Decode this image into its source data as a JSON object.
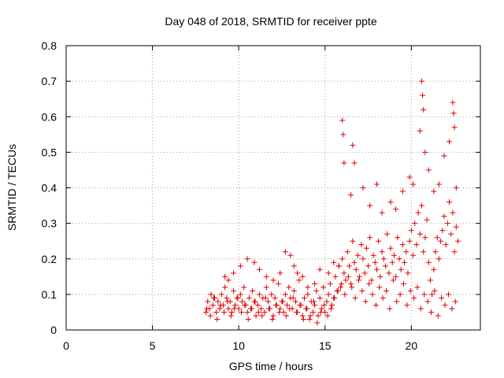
{
  "chart_data": {
    "type": "scatter",
    "title": "Day 048 of 2018, SRMTID for receiver ppte",
    "xlabel": "GPS time / hours",
    "ylabel": "SRMTID / TECUs",
    "xlim": [
      0,
      24
    ],
    "ylim": [
      0,
      0.8
    ],
    "xticks": [
      0,
      5,
      10,
      15,
      20
    ],
    "xtick_labels": [
      "0",
      "5",
      "10",
      "15",
      "20"
    ],
    "yticks": [
      0,
      0.1,
      0.2,
      0.3,
      0.4,
      0.5,
      0.6,
      0.7,
      0.8
    ],
    "ytick_labels": [
      "0",
      "0.1",
      "0.2",
      "0.3",
      "0.4",
      "0.5",
      "0.6",
      "0.7",
      "0.8"
    ],
    "grid": true,
    "marker": "+",
    "color": "#e00000",
    "series": [
      {
        "name": "SRMTID",
        "x": [
          8.1,
          8.2,
          8.3,
          8.4,
          8.5,
          8.6,
          8.7,
          8.8,
          8.9,
          9.0,
          9.1,
          9.2,
          9.3,
          9.4,
          9.5,
          9.6,
          9.7,
          9.8,
          9.9,
          10.0,
          10.1,
          10.2,
          10.3,
          10.4,
          10.5,
          10.6,
          10.7,
          10.8,
          10.9,
          11.0,
          11.1,
          11.2,
          11.3,
          11.4,
          11.5,
          11.6,
          11.7,
          11.8,
          11.9,
          12.0,
          12.1,
          12.2,
          12.3,
          12.4,
          12.5,
          12.6,
          12.7,
          12.8,
          12.9,
          13.0,
          13.1,
          13.2,
          13.3,
          13.4,
          13.5,
          13.6,
          13.7,
          13.8,
          13.9,
          14.0,
          14.1,
          14.2,
          14.3,
          14.4,
          14.5,
          14.6,
          14.7,
          14.8,
          14.9,
          15.0,
          15.1,
          15.2,
          15.3,
          15.4,
          15.5,
          15.6,
          15.7,
          15.8,
          15.9,
          16.0,
          16.1,
          16.2,
          16.3,
          16.4,
          16.5,
          16.6,
          16.7,
          16.8,
          16.9,
          17.0,
          17.1,
          17.2,
          17.3,
          17.4,
          17.5,
          17.6,
          17.7,
          17.8,
          17.9,
          18.0,
          18.1,
          18.2,
          18.3,
          18.4,
          18.5,
          18.6,
          18.7,
          18.8,
          18.9,
          19.0,
          19.1,
          19.2,
          19.3,
          19.4,
          19.5,
          19.6,
          19.7,
          19.8,
          19.9,
          20.0,
          20.1,
          20.2,
          20.3,
          20.4,
          20.5,
          20.6,
          20.7,
          20.8,
          20.9,
          21.0,
          21.1,
          21.2,
          21.3,
          21.4,
          21.5,
          21.6,
          21.7,
          21.8,
          21.9,
          22.0,
          22.1,
          22.2,
          22.3,
          22.4,
          22.5,
          22.6,
          22.7,
          8.15,
          8.35,
          8.55,
          8.75,
          8.95,
          9.15,
          9.35,
          9.55,
          9.75,
          9.95,
          10.15,
          10.35,
          10.55,
          10.75,
          10.95,
          11.15,
          11.35,
          11.55,
          11.75,
          11.95,
          12.15,
          12.35,
          12.55,
          12.75,
          12.95,
          13.15,
          13.35,
          13.55,
          13.75,
          13.95,
          14.15,
          14.35,
          14.55,
          14.75,
          14.95,
          15.15,
          15.35,
          15.55,
          15.75,
          15.95,
          16.15,
          16.35,
          16.55,
          16.75,
          16.95,
          17.15,
          17.35,
          17.55,
          17.75,
          17.95,
          18.15,
          18.35,
          18.55,
          18.75,
          18.95,
          19.15,
          19.35,
          19.55,
          19.75,
          19.95,
          20.15,
          20.35,
          20.55,
          20.75,
          20.95,
          21.15,
          21.35,
          21.55,
          21.75,
          21.95,
          22.15,
          22.35,
          22.55,
          9.2,
          9.4,
          9.7,
          10.1,
          10.5,
          10.9,
          11.2,
          11.6,
          12.0,
          12.4,
          12.7,
          13.0,
          13.2,
          13.4,
          13.7,
          14.0,
          14.4,
          14.7,
          15.2,
          15.5,
          15.8,
          16.0,
          16.05,
          16.1,
          16.5,
          16.6,
          16.7,
          17.2,
          17.6,
          18.0,
          18.3,
          18.8,
          19.1,
          19.5,
          19.9,
          20.1,
          20.5,
          20.6,
          20.65,
          20.7,
          20.8,
          21.0,
          21.3,
          21.6,
          21.9,
          22.2,
          22.4,
          22.45,
          22.5,
          22.6
        ],
        "y": [
          0.05,
          0.08,
          0.06,
          0.1,
          0.07,
          0.09,
          0.05,
          0.08,
          0.06,
          0.1,
          0.07,
          0.12,
          0.09,
          0.06,
          0.08,
          0.05,
          0.11,
          0.07,
          0.09,
          0.06,
          0.1,
          0.08,
          0.12,
          0.07,
          0.05,
          0.09,
          0.06,
          0.11,
          0.08,
          0.04,
          0.07,
          0.1,
          0.06,
          0.09,
          0.05,
          0.12,
          0.08,
          0.06,
          0.1,
          0.04,
          0.09,
          0.07,
          0.13,
          0.06,
          0.08,
          0.05,
          0.1,
          0.07,
          0.12,
          0.09,
          0.06,
          0.11,
          0.08,
          0.05,
          0.14,
          0.07,
          0.04,
          0.09,
          0.06,
          0.1,
          0.03,
          0.08,
          0.05,
          0.07,
          0.11,
          0.04,
          0.09,
          0.06,
          0.12,
          0.05,
          0.08,
          0.1,
          0.13,
          0.07,
          0.09,
          0.15,
          0.11,
          0.18,
          0.12,
          0.2,
          0.16,
          0.14,
          0.22,
          0.18,
          0.13,
          0.25,
          0.19,
          0.17,
          0.21,
          0.15,
          0.24,
          0.2,
          0.16,
          0.23,
          0.18,
          0.26,
          0.14,
          0.21,
          0.19,
          0.17,
          0.25,
          0.15,
          0.22,
          0.2,
          0.18,
          0.27,
          0.16,
          0.23,
          0.19,
          0.21,
          0.15,
          0.26,
          0.2,
          0.17,
          0.24,
          0.19,
          0.22,
          0.16,
          0.25,
          0.28,
          0.21,
          0.3,
          0.24,
          0.33,
          0.27,
          0.35,
          0.22,
          0.26,
          0.31,
          0.19,
          0.14,
          0.1,
          0.17,
          0.22,
          0.26,
          0.2,
          0.25,
          0.28,
          0.32,
          0.24,
          0.3,
          0.36,
          0.27,
          0.33,
          0.22,
          0.29,
          0.25,
          0.06,
          0.04,
          0.09,
          0.03,
          0.07,
          0.05,
          0.08,
          0.04,
          0.06,
          0.09,
          0.05,
          0.07,
          0.03,
          0.06,
          0.08,
          0.05,
          0.04,
          0.09,
          0.06,
          0.03,
          0.07,
          0.05,
          0.08,
          0.04,
          0.06,
          0.09,
          0.05,
          0.07,
          0.03,
          0.06,
          0.04,
          0.08,
          0.02,
          0.05,
          0.07,
          0.04,
          0.06,
          0.09,
          0.11,
          0.13,
          0.1,
          0.15,
          0.12,
          0.09,
          0.14,
          0.11,
          0.08,
          0.13,
          0.1,
          0.07,
          0.12,
          0.09,
          0.11,
          0.06,
          0.14,
          0.08,
          0.1,
          0.13,
          0.07,
          0.11,
          0.09,
          0.12,
          0.06,
          0.1,
          0.08,
          0.05,
          0.11,
          0.04,
          0.09,
          0.07,
          0.1,
          0.06,
          0.08,
          0.15,
          0.14,
          0.16,
          0.18,
          0.2,
          0.19,
          0.17,
          0.15,
          0.14,
          0.16,
          0.22,
          0.21,
          0.18,
          0.16,
          0.15,
          0.12,
          0.13,
          0.17,
          0.16,
          0.19,
          0.18,
          0.59,
          0.55,
          0.47,
          0.38,
          0.52,
          0.47,
          0.4,
          0.35,
          0.41,
          0.33,
          0.36,
          0.34,
          0.39,
          0.43,
          0.41,
          0.56,
          0.7,
          0.66,
          0.62,
          0.5,
          0.45,
          0.39,
          0.41,
          0.49,
          0.53,
          0.64,
          0.61,
          0.57,
          0.4
        ]
      }
    ]
  }
}
